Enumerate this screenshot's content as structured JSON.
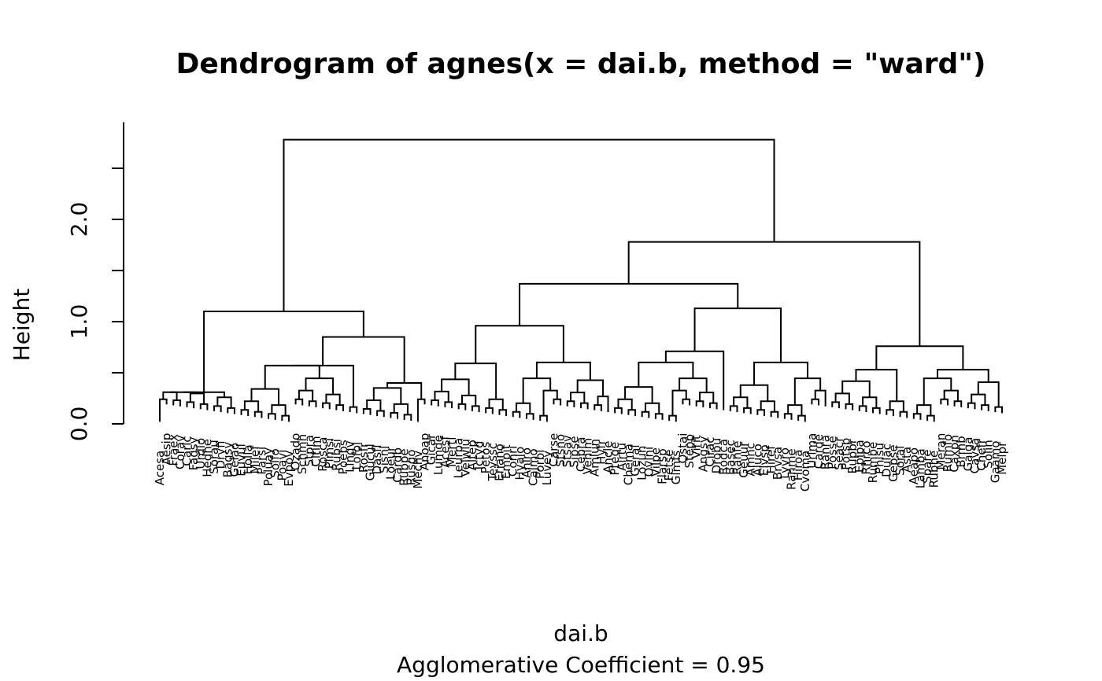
{
  "chart_data": {
    "type": "dendrogram",
    "title": "Dendrogram of  agnes(x = dai.b, method = \"ward\")",
    "xlabel": "dai.b",
    "sub": "Agglomerative Coefficient =  0.95",
    "ylabel": "Height",
    "ylim": [
      0,
      2.78
    ],
    "y_ticks": [
      0,
      0.5,
      1.0,
      1.5,
      2.0,
      2.5
    ],
    "y_tick_labels": [
      "0.0",
      "",
      "1.0",
      "",
      "2.0",
      ""
    ],
    "leaves": [
      "Acesa",
      "Aesip",
      "Fraex",
      "Corav",
      "Caric",
      "Fagsy",
      "Urdio",
      "Hedhe",
      "Sorau",
      "Dryfi",
      "Bagsy",
      "Gelao",
      "Euvul",
      "Holla",
      "Milef",
      "Parsi",
      "Poluay",
      "Solfo",
      "Poavi",
      "Evpov",
      "Ozado",
      "Schmh",
      "Stpra",
      "Cltim",
      "Rosca",
      "Pimsi",
      "Rubsi",
      "Poebs",
      "Lingv",
      "Lofol",
      "Rosfr",
      "Giucul",
      "Dasfl",
      "Sisnl",
      "Loeur",
      "Cardb",
      "Rubpe",
      "Rusgo",
      "Mechv",
      "Anoap",
      "Gicar",
      "Lumde",
      "Acesf",
      "Mertl",
      "Leurpa",
      "Velwlu",
      "Altep",
      "Ictyd",
      "Petos",
      "Teyssc",
      "Eriano",
      "Empit",
      "Conri",
      "Hyalo",
      "Aniro",
      "Cajmo",
      "Porbi",
      "Luvey",
      "Carse",
      "Stsno",
      "Stsav",
      "Sipse",
      "Cepra",
      "Vehlm",
      "Amlun",
      "Hyfr",
      "Ancle",
      "Pteqe",
      "Alrtu",
      "Chema",
      "Geral",
      "Lozun",
      "Ovlni",
      "Vilpe",
      "Flarsp",
      "Fetse",
      "Glmfs",
      "Ostai",
      "Stepp",
      "Virit",
      "Angsy",
      "Cirac",
      "Drobu",
      "Rodca",
      "Basec",
      "Ranfe",
      "Geuur",
      "Amnc",
      "Aluco",
      "Elvsp",
      "Hiref",
      "Brvsa",
      "Lyvro",
      "Ranme",
      "Hiroa",
      "Cvoma",
      "Urlma",
      "Carde",
      "Ranra",
      "Posse",
      "Seacr",
      "Potsp",
      "Rupbr",
      "Epipa",
      "Rhrco",
      "Rumbe",
      "Phlsu",
      "Dulac",
      "Gepse",
      "Soral",
      "Asta",
      "Aeapo",
      "Lamba",
      "Spare",
      "Rubhe",
      "Meran",
      "Rumfo",
      "Caxpn",
      "Brmb",
      "Galga",
      "Cavsa",
      "Chefr",
      "Solin",
      "Gaamo",
      "Melpr"
    ],
    "heights_max": 2.78,
    "main_merges": [
      {
        "height": 2.78,
        "groups": [
          "left",
          "right"
        ]
      },
      {
        "height": 1.1,
        "groups": [
          "left-a",
          "left-b"
        ]
      },
      {
        "height": 1.78,
        "groups": [
          "right-a",
          "right-b"
        ]
      },
      {
        "height": 1.37,
        "groups": [
          "middle",
          "center-right"
        ]
      },
      {
        "height": 0.96,
        "groups": [
          "middle-a",
          "middle-b"
        ]
      },
      {
        "height": 1.13,
        "groups": [
          "center-right-a",
          "center-right-b"
        ]
      },
      {
        "height": 0.76,
        "groups": [
          "far-right-a",
          "far-right-b"
        ]
      }
    ]
  }
}
